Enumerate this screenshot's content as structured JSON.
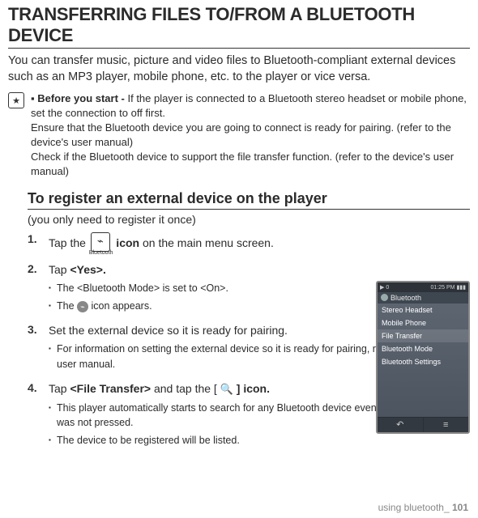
{
  "title": "TRANSFERRING FILES TO/FROM A BLUETOOTH DEVICE",
  "intro": "You can transfer music, picture and video files to Bluetooth-compliant external devices such as an MP3 player, mobile phone, etc. to the player or vice versa.",
  "note": {
    "lead": "Before you start - ",
    "line1": "If the player is connected to a Bluetooth stereo headset or mobile phone, set the connection to off first.",
    "line2": "Ensure that the Bluetooth device you are going to connect is ready for pairing. (refer to the device's user manual)",
    "line3": "Check if the Bluetooth device to support the file transfer function. (refer to the device's user manual)"
  },
  "section_title": "To register an external device on the player",
  "section_sub": "(you only need to register it once)",
  "bt_icon_label": "Bluetooth",
  "steps": {
    "s1": {
      "num": "1.",
      "pre": "Tap the ",
      "post": " icon",
      "tail": " on the main menu screen."
    },
    "s2": {
      "num": "2.",
      "text": "Tap <Yes>.",
      "b1": "The <Bluetooth Mode> is set to <On>.",
      "b2a": "The ",
      "b2b": " icon appears."
    },
    "s3": {
      "num": "3.",
      "text": "Set the external device so it is ready for pairing.",
      "b1": "For information on setting the external device so it is ready for pairing, refer to the device's user manual."
    },
    "s4": {
      "num": "4.",
      "pre": "Tap ",
      "bold1": "<File Transfer>",
      "mid": " and tap the [ ",
      "bold2": " ] icon.",
      "b1": "This player automatically starts to search for any Bluetooth device even if the [ 🔍 ] icon was not pressed.",
      "b2": "The device to be registered will be listed."
    }
  },
  "phone": {
    "status_left": "▶  0",
    "status_right": "01:25 PM ▮▮▮",
    "title": "Bluetooth",
    "items": {
      "i0": "Stereo Headset",
      "i1": "Mobile Phone",
      "i2": "File Transfer",
      "i3": "Bluetooth Mode",
      "i4": "Bluetooth Settings"
    },
    "back": "↶",
    "menu": "≡"
  },
  "footer": {
    "text": "using bluetooth_ ",
    "page": "101"
  }
}
